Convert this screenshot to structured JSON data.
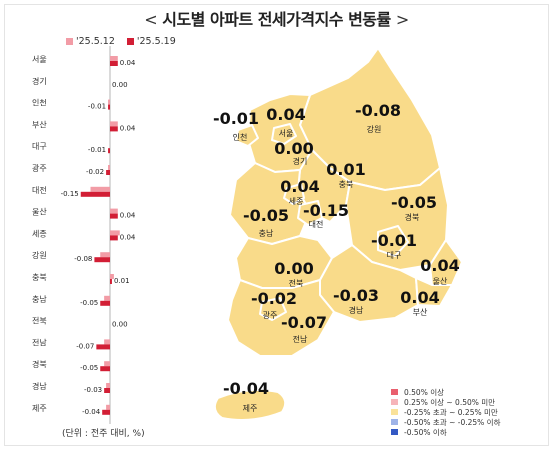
{
  "page": {
    "title": "시도별 아파트 전세가격지수 변동률",
    "chevron_left": "<",
    "chevron_right": ">",
    "unit_note": "(단위 : 전주 대비, %)"
  },
  "colors": {
    "prev_week": "#f29ca6",
    "this_week": "#d21e35",
    "map_fill": "#f9db8a",
    "map_border": "#ffffff",
    "zero_line": "#b4b4b4"
  },
  "chart_data": {
    "type": "bar",
    "orientation": "horizontal",
    "legend_placement": "top",
    "categories": [
      "서울",
      "경기",
      "인천",
      "부산",
      "대구",
      "광주",
      "대전",
      "울산",
      "세종",
      "강원",
      "충북",
      "충남",
      "전북",
      "전남",
      "경북",
      "경남",
      "제주"
    ],
    "series": [
      {
        "name": "'25.5.12",
        "values": [
          0.04,
          0.0,
          -0.01,
          0.04,
          0.0,
          -0.01,
          -0.1,
          0.04,
          0.05,
          -0.05,
          0.02,
          -0.03,
          0.0,
          -0.03,
          -0.03,
          -0.02,
          -0.02
        ]
      },
      {
        "name": "'25.5.19",
        "values": [
          0.04,
          0.0,
          -0.01,
          0.04,
          -0.01,
          -0.02,
          -0.15,
          0.04,
          0.04,
          -0.08,
          0.01,
          -0.05,
          0.0,
          -0.07,
          -0.05,
          -0.03,
          -0.04
        ]
      }
    ],
    "data_labels": [
      "0.04",
      "0.00",
      "-0.01",
      "0.04",
      "-0.01",
      "-0.02",
      "-0.15",
      "0.04",
      "0.04",
      "-0.08",
      "0.01",
      "-0.05",
      "0.00",
      "-0.07",
      "-0.05",
      "-0.03",
      "-0.04"
    ]
  },
  "map": {
    "regions": [
      {
        "name": "인천",
        "value": "-0.01"
      },
      {
        "name": "서울",
        "value": "0.04"
      },
      {
        "name": "경기",
        "value": "0.00"
      },
      {
        "name": "강원",
        "value": "-0.08"
      },
      {
        "name": "충북",
        "value": "0.01"
      },
      {
        "name": "세종",
        "value": "0.04"
      },
      {
        "name": "대전",
        "value": "-0.15"
      },
      {
        "name": "충남",
        "value": "-0.05"
      },
      {
        "name": "경북",
        "value": "-0.05"
      },
      {
        "name": "대구",
        "value": "-0.01"
      },
      {
        "name": "전북",
        "value": "0.00"
      },
      {
        "name": "울산",
        "value": "0.04"
      },
      {
        "name": "광주",
        "value": "-0.02"
      },
      {
        "name": "경남",
        "value": "-0.03"
      },
      {
        "name": "부산",
        "value": "0.04"
      },
      {
        "name": "전남",
        "value": "-0.07"
      },
      {
        "name": "제주",
        "value": "-0.04"
      }
    ],
    "legend": [
      {
        "label": "0.50% 이상",
        "color": "#e95f6e"
      },
      {
        "label": "0.25% 이상 ~ 0.50% 미만",
        "color": "#f6b4b9"
      },
      {
        "label": "-0.25% 초과 ~ 0.25% 미만",
        "color": "#fae29a"
      },
      {
        "label": "-0.50% 초과 ~ -0.25% 이하",
        "color": "#9fb4e8"
      },
      {
        "label": "-0.50% 이하",
        "color": "#3359c4"
      }
    ]
  }
}
